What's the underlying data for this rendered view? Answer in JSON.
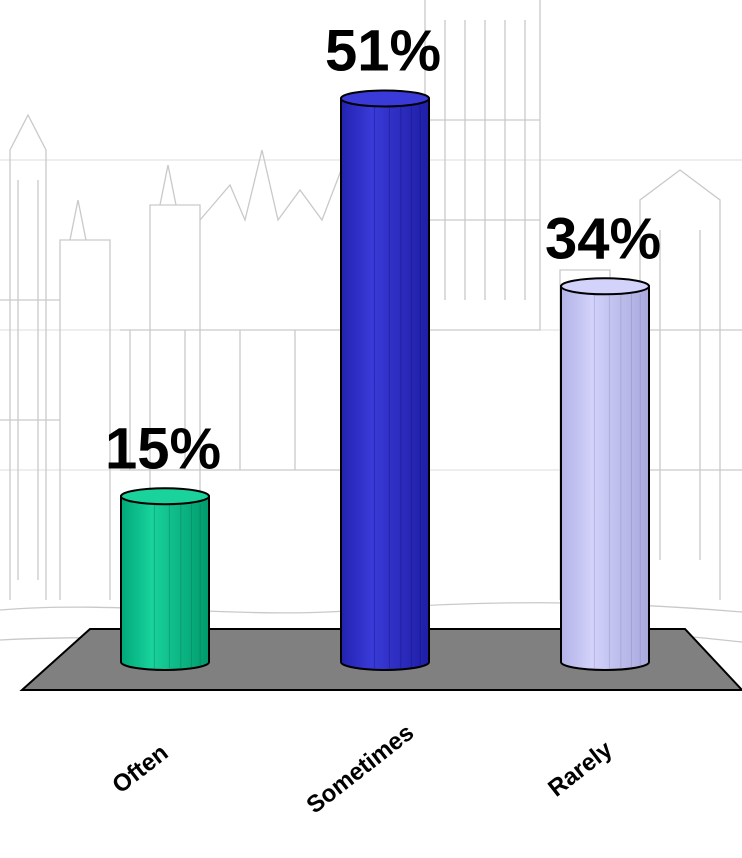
{
  "chart_data": {
    "type": "bar",
    "title": "",
    "xlabel": "",
    "ylabel": "",
    "categories": [
      "Often",
      "Sometimes",
      "Rarely"
    ],
    "values": [
      15,
      51,
      34
    ],
    "value_labels": [
      "15%",
      "51%",
      "34%"
    ],
    "unit": "%",
    "ylim": [
      0,
      60
    ],
    "grid": false,
    "legend": "none",
    "style": "3d-cylinder",
    "colors": [
      "#00c48c",
      "#2e2ecc",
      "#c4c4f4"
    ],
    "floor_color": "#808080",
    "background": "faded sketch of a gothic parliament building"
  }
}
